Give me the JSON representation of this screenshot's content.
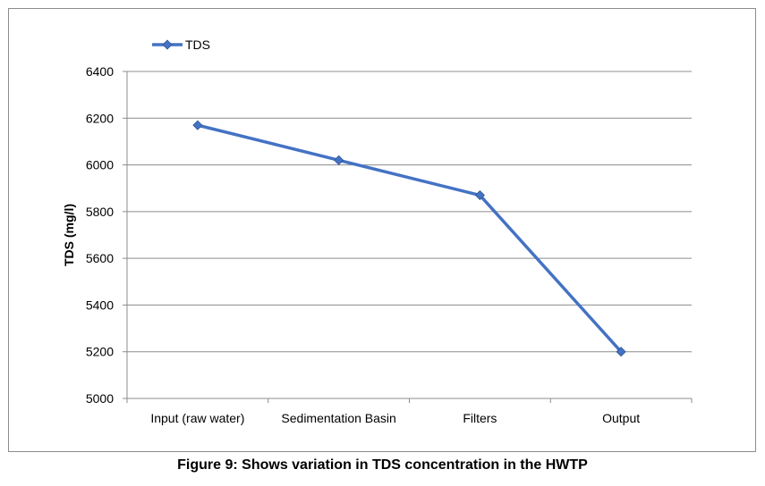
{
  "chart_data": {
    "type": "line",
    "categories": [
      "Input (raw water)",
      "Sedimentation Basin",
      "Filters",
      "Output"
    ],
    "series": [
      {
        "name": "TDS",
        "values": [
          6170,
          6020,
          5870,
          5200
        ],
        "color": "#4472c4",
        "marker": "diamond"
      }
    ],
    "ylabel": "TDS (mg/l)",
    "xlabel": "",
    "ylim": [
      5000,
      6400
    ],
    "yticks": [
      5000,
      5200,
      5400,
      5600,
      5800,
      6000,
      6200,
      6400
    ],
    "grid": true,
    "legend": "top-left"
  },
  "caption": "Figure 9: Shows variation in TDS concentration in the HWTP",
  "colors": {
    "series": "#4472c4",
    "gridline": "#8c8c8c",
    "axis": "#8c8c8c"
  }
}
